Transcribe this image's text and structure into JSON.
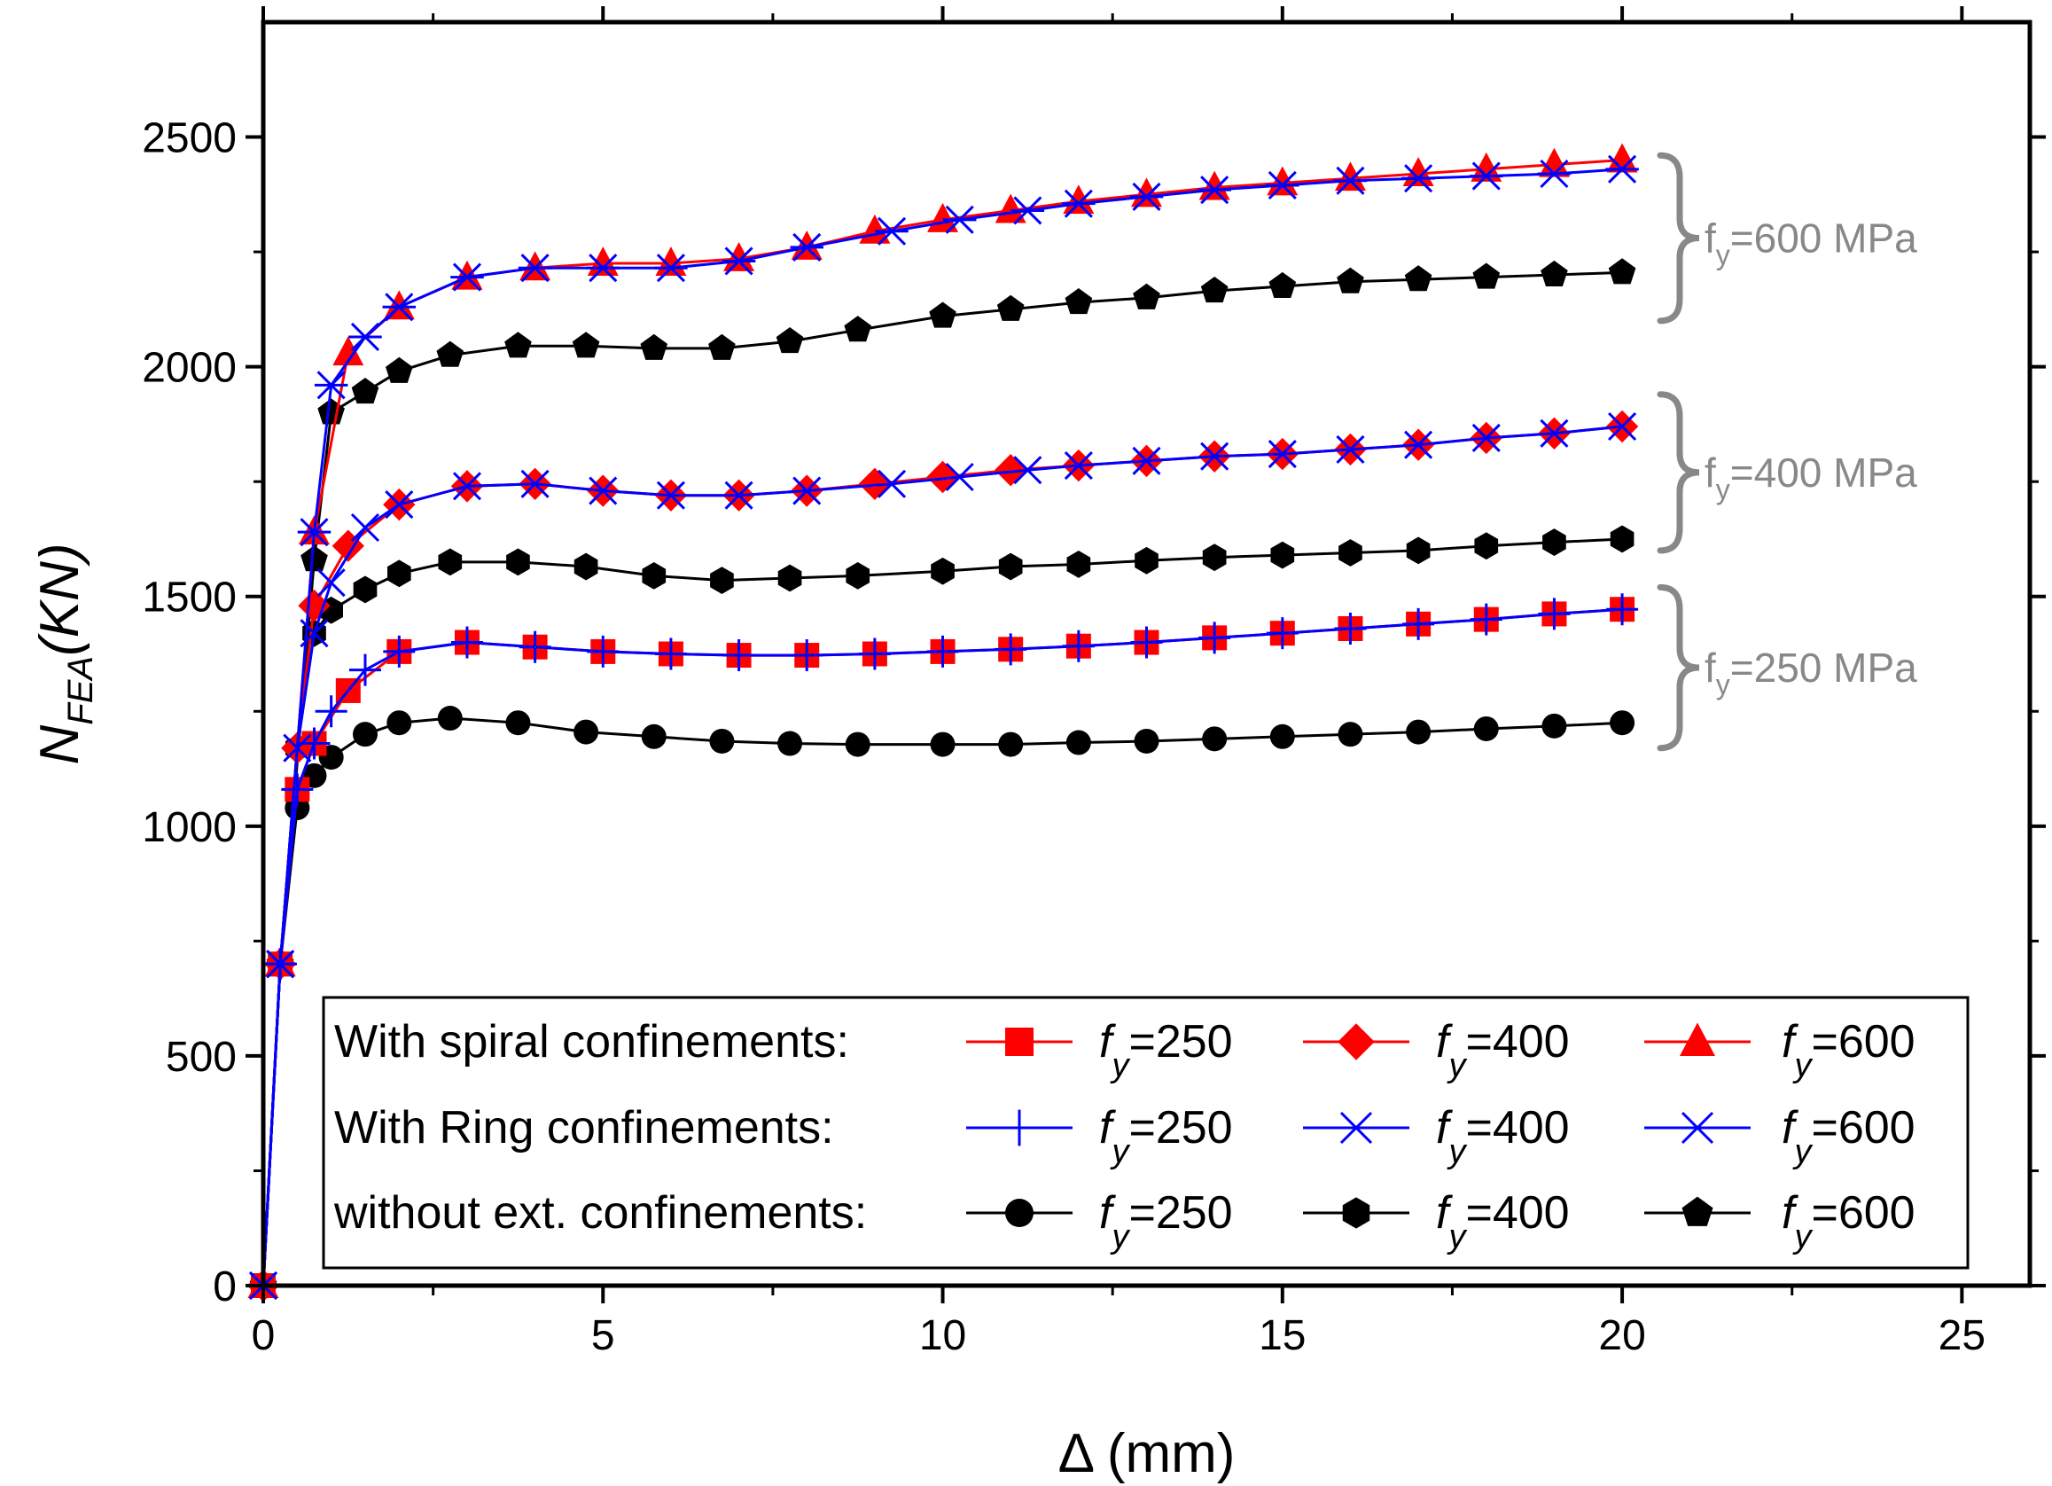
{
  "chart_data": {
    "type": "line",
    "title": "",
    "xlabel": "Δ (mm)",
    "ylabel": {
      "main": "N",
      "sub": "FEA",
      "rest": "(KN)"
    },
    "xlim": [
      0,
      26
    ],
    "ylim": [
      0,
      2750
    ],
    "xticks": [
      0,
      5,
      10,
      15,
      20,
      25
    ],
    "yticks": [
      0,
      500,
      1000,
      1500,
      2000,
      2500
    ],
    "x_tick_labels": [
      "0",
      "5",
      "10",
      "15",
      "20",
      "25"
    ],
    "y_tick_labels": [
      "0",
      "500",
      "1000",
      "1500",
      "2000",
      "2500"
    ],
    "grid": false,
    "legend": {
      "placement": "bottom",
      "groups": [
        {
          "label": "With spiral confinements:",
          "entries": [
            "spiral-250",
            "spiral-400",
            "spiral-600"
          ]
        },
        {
          "label": "With Ring confinements:",
          "entries": [
            "ring-250",
            "ring-400",
            "ring-600"
          ]
        },
        {
          "label": "without ext. confinements:",
          "entries": [
            "none-250",
            "none-400",
            "none-600"
          ]
        }
      ]
    },
    "annotations": [
      {
        "prefix": "f",
        "sub": "y",
        "text": "=600 MPa",
        "range": [
          2100,
          2460
        ]
      },
      {
        "prefix": "f",
        "sub": "y",
        "text": "=400 MPa",
        "range": [
          1600,
          1940
        ]
      },
      {
        "prefix": "f",
        "sub": "y",
        "text": "=250 MPa",
        "range": [
          1170,
          1520
        ]
      }
    ],
    "series": [
      {
        "id": "spiral-250",
        "legend_prefix": "f",
        "legend_sub": "y",
        "legend_value": "=250",
        "color": "#ff0000",
        "marker": "square",
        "x": [
          0,
          0.25,
          0.5,
          0.75,
          1.25,
          2,
          3,
          4,
          5,
          6,
          7,
          8,
          9,
          10,
          11,
          12,
          13,
          14,
          15,
          16,
          17,
          18,
          19,
          20
        ],
        "y": [
          0,
          700,
          1080,
          1180,
          1295,
          1380,
          1400,
          1390,
          1380,
          1375,
          1372,
          1372,
          1375,
          1380,
          1385,
          1392,
          1400,
          1410,
          1420,
          1430,
          1440,
          1450,
          1462,
          1472
        ]
      },
      {
        "id": "spiral-400",
        "legend_prefix": "f",
        "legend_sub": "y",
        "legend_value": "=400",
        "color": "#ff0000",
        "marker": "diamond",
        "x": [
          0,
          0.25,
          0.5,
          0.75,
          1.25,
          2,
          3,
          4,
          5,
          6,
          7,
          8,
          9,
          10,
          11,
          12,
          13,
          14,
          15,
          16,
          17,
          18,
          19,
          20
        ],
        "y": [
          0,
          700,
          1170,
          1480,
          1610,
          1700,
          1740,
          1745,
          1730,
          1720,
          1720,
          1730,
          1745,
          1760,
          1775,
          1785,
          1795,
          1805,
          1810,
          1820,
          1830,
          1845,
          1855,
          1870
        ]
      },
      {
        "id": "spiral-600",
        "legend_prefix": "f",
        "legend_sub": "y",
        "legend_value": "=600",
        "color": "#ff0000",
        "marker": "triangle",
        "x": [
          0,
          0.25,
          0.75,
          1.25,
          2,
          3,
          4,
          5,
          6,
          7,
          8,
          9,
          10,
          11,
          12,
          13,
          14,
          15,
          16,
          17,
          18,
          19,
          20
        ],
        "y": [
          0,
          700,
          1640,
          2030,
          2130,
          2195,
          2215,
          2225,
          2225,
          2235,
          2260,
          2295,
          2320,
          2340,
          2360,
          2375,
          2390,
          2400,
          2410,
          2420,
          2430,
          2440,
          2450
        ]
      },
      {
        "id": "ring-250",
        "legend_prefix": "f",
        "legend_sub": "y",
        "legend_value": "=250",
        "color": "#0000ff",
        "marker": "plus",
        "x": [
          0,
          0.25,
          0.5,
          0.75,
          1,
          1.5,
          2,
          3,
          4,
          5,
          6,
          7,
          8,
          9,
          10,
          11,
          12,
          13,
          14,
          15,
          16,
          17,
          18,
          19,
          20
        ],
        "y": [
          0,
          700,
          1080,
          1180,
          1250,
          1340,
          1380,
          1400,
          1390,
          1380,
          1375,
          1372,
          1372,
          1375,
          1380,
          1385,
          1392,
          1400,
          1410,
          1420,
          1430,
          1440,
          1450,
          1462,
          1472
        ]
      },
      {
        "id": "ring-400",
        "legend_prefix": "f",
        "legend_sub": "y",
        "legend_value": "=400",
        "color": "#0000ff",
        "marker": "x",
        "x": [
          0,
          0.25,
          0.5,
          0.75,
          1,
          1.5,
          2,
          3,
          4,
          5,
          6,
          7,
          8,
          9.25,
          10.25,
          11.25,
          12,
          13,
          14,
          15,
          16,
          17,
          18,
          19,
          20
        ],
        "y": [
          0,
          700,
          1170,
          1420,
          1530,
          1650,
          1700,
          1740,
          1745,
          1730,
          1720,
          1720,
          1730,
          1745,
          1760,
          1775,
          1785,
          1795,
          1805,
          1810,
          1820,
          1830,
          1845,
          1855,
          1870
        ]
      },
      {
        "id": "ring-600",
        "legend_prefix": "f",
        "legend_sub": "y",
        "legend_value": "=600",
        "color": "#0000ff",
        "marker": "asterisk",
        "x": [
          0,
          0.25,
          0.75,
          1,
          1.5,
          2,
          3,
          4,
          5,
          6,
          7,
          8,
          9.25,
          10.25,
          11.25,
          12,
          13,
          14,
          15,
          16,
          17,
          18,
          19,
          20
        ],
        "y": [
          0,
          700,
          1640,
          1960,
          2065,
          2130,
          2195,
          2215,
          2215,
          2215,
          2230,
          2260,
          2295,
          2320,
          2340,
          2355,
          2370,
          2385,
          2395,
          2405,
          2410,
          2415,
          2420,
          2430
        ]
      },
      {
        "id": "none-250",
        "legend_prefix": "f",
        "legend_sub": "y",
        "legend_value": "=250",
        "color": "#000000",
        "marker": "circle",
        "x": [
          0,
          0.25,
          0.5,
          0.75,
          1,
          1.5,
          2,
          2.75,
          3.75,
          4.75,
          5.75,
          6.75,
          7.75,
          8.75,
          10,
          11,
          12,
          13,
          14,
          15,
          16,
          17,
          18,
          19,
          20
        ],
        "y": [
          0,
          700,
          1040,
          1110,
          1150,
          1200,
          1225,
          1235,
          1225,
          1205,
          1195,
          1185,
          1180,
          1178,
          1178,
          1178,
          1182,
          1185,
          1190,
          1195,
          1200,
          1205,
          1212,
          1218,
          1225
        ]
      },
      {
        "id": "none-400",
        "legend_prefix": "f",
        "legend_sub": "y",
        "legend_value": "=400",
        "color": "#000000",
        "marker": "hexagon",
        "x": [
          0,
          0.25,
          0.5,
          0.75,
          1,
          1.5,
          2,
          2.75,
          3.75,
          4.75,
          5.75,
          6.75,
          7.75,
          8.75,
          10,
          11,
          12,
          13,
          14,
          15,
          16,
          17,
          18,
          19,
          20
        ],
        "y": [
          0,
          700,
          1170,
          1420,
          1470,
          1515,
          1550,
          1575,
          1575,
          1565,
          1545,
          1535,
          1540,
          1545,
          1555,
          1565,
          1570,
          1578,
          1585,
          1590,
          1595,
          1600,
          1610,
          1618,
          1625
        ]
      },
      {
        "id": "none-600",
        "legend_prefix": "f",
        "legend_sub": "y",
        "legend_value": "=600",
        "color": "#000000",
        "marker": "pentagon",
        "x": [
          0,
          0.25,
          0.75,
          1,
          1.5,
          2,
          2.75,
          3.75,
          4.75,
          5.75,
          6.75,
          7.75,
          8.75,
          10,
          11,
          12,
          13,
          14,
          15,
          16,
          17,
          18,
          19,
          20
        ],
        "y": [
          0,
          700,
          1580,
          1900,
          1945,
          1990,
          2025,
          2045,
          2045,
          2040,
          2040,
          2055,
          2080,
          2110,
          2125,
          2140,
          2150,
          2165,
          2175,
          2185,
          2190,
          2195,
          2200,
          2205
        ]
      }
    ]
  }
}
